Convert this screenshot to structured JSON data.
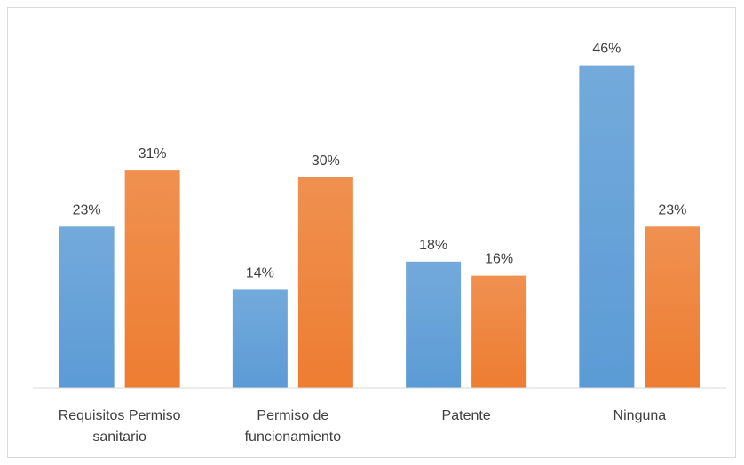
{
  "chart_data": {
    "type": "bar",
    "categories": [
      "Requisitos Permiso sanitario",
      "Permiso de funcionamiento",
      "Patente",
      "Ninguna"
    ],
    "series": [
      {
        "color": "#5b9bd5",
        "values": [
          23,
          14,
          18,
          46
        ],
        "value_labels": [
          "23%",
          "14%",
          "18%",
          "46%"
        ]
      },
      {
        "color": "#ed7d31",
        "values": [
          31,
          30,
          16,
          23
        ],
        "value_labels": [
          "31%",
          "30%",
          "16%",
          "23%"
        ]
      }
    ],
    "ylim": [
      0,
      50
    ]
  }
}
